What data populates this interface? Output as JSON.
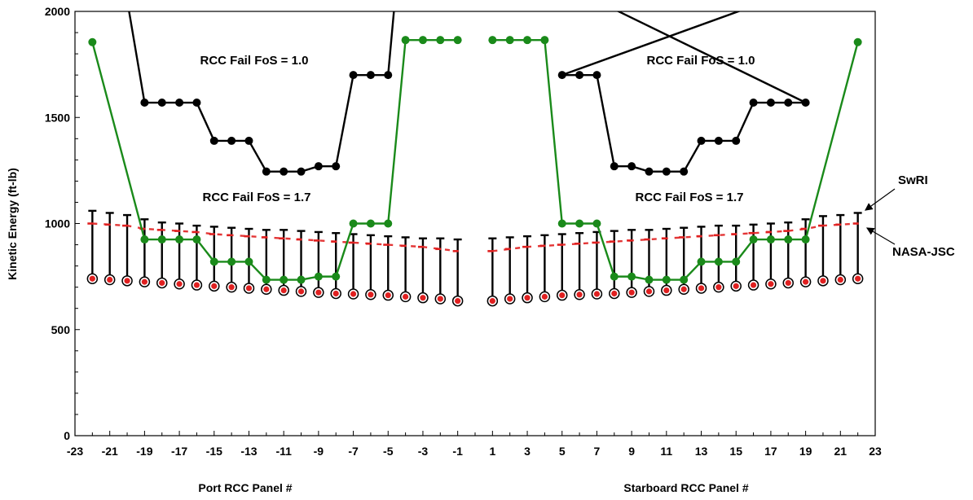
{
  "chart_data": {
    "type": "line",
    "ylabel": "Kinetic Energy (ft-lb)",
    "xlabel_port": "Port RCC Panel #",
    "xlabel_starboard": "Starboard RCC Panel #",
    "ylim": [
      0,
      2000
    ],
    "xlim": [
      -23,
      23
    ],
    "y_ticks": [
      0,
      500,
      1000,
      1500,
      2000
    ],
    "x_tick_labels": [
      "-23",
      "-21",
      "-19",
      "-17",
      "-15",
      "-13",
      "-11",
      "-9",
      "-7",
      "-5",
      "-3",
      "-1",
      "1",
      "3",
      "5",
      "7",
      "9",
      "11",
      "13",
      "15",
      "17",
      "19",
      "21",
      "23"
    ],
    "grid": false,
    "legend": "none",
    "annotations": {
      "fos10_left": "RCC Fail FoS = 1.0",
      "fos10_right": "RCC Fail FoS = 1.0",
      "fos17_left": "RCC Fail FoS = 1.7",
      "fos17_right": "RCC Fail FoS = 1.7",
      "swri": "SwRI",
      "nasa": "NASA-JSC"
    },
    "panels": {
      "port": [
        -22,
        -21,
        -20,
        -19,
        -18,
        -17,
        -16,
        -15,
        -14,
        -13,
        -12,
        -11,
        -10,
        -9,
        -8,
        -7,
        -6,
        -5,
        -4,
        -3,
        -2,
        -1
      ],
      "starboard": [
        1,
        2,
        3,
        4,
        5,
        6,
        7,
        8,
        9,
        10,
        11,
        12,
        13,
        14,
        15,
        16,
        17,
        18,
        19,
        20,
        21,
        22
      ]
    },
    "series": [
      {
        "color": "#000000",
        "port_x": [
          -19,
          -18,
          -17,
          -16,
          -15,
          -14,
          -13,
          -12,
          -11,
          -10,
          -9,
          -8,
          -7,
          -6,
          -5
        ],
        "port_y": [
          1570,
          1570,
          1570,
          1570,
          1390,
          1390,
          1390,
          1245,
          1245,
          1245,
          1270,
          1270,
          1700,
          1700,
          1700
        ],
        "starboard_x": [
          5,
          6,
          7,
          8,
          9,
          10,
          11,
          12,
          13,
          14,
          15,
          16,
          17,
          18,
          19
        ],
        "starboard_y": [
          1700,
          1700,
          1700,
          1270,
          1270,
          1245,
          1245,
          1245,
          1390,
          1390,
          1390,
          1570,
          1570,
          1570,
          1570
        ]
      },
      {
        "color": "#1a8a1a",
        "port_x": [
          -22,
          -19,
          -18,
          -17,
          -16,
          -15,
          -14,
          -13,
          -12,
          -11,
          -10,
          -9,
          -8,
          -7,
          -6,
          -5,
          -4,
          -3,
          -2,
          -1
        ],
        "port_y": [
          1855,
          925,
          925,
          925,
          925,
          820,
          820,
          820,
          735,
          735,
          735,
          750,
          750,
          1000,
          1000,
          1000,
          1865,
          1865,
          1865,
          1865
        ],
        "starboard_x": [
          1,
          2,
          3,
          4,
          5,
          6,
          7,
          8,
          9,
          10,
          11,
          12,
          13,
          14,
          15,
          16,
          17,
          18,
          19,
          22
        ],
        "starboard_y": [
          1865,
          1865,
          1865,
          1865,
          1000,
          1000,
          1000,
          750,
          750,
          735,
          735,
          735,
          820,
          820,
          820,
          925,
          925,
          925,
          925,
          1855
        ]
      },
      {
        "name": "SwRI",
        "color": "#000000",
        "port_values": [
          1060,
          1050,
          1040,
          1020,
          1005,
          1000,
          990,
          985,
          980,
          975,
          970,
          970,
          965,
          960,
          955,
          950,
          945,
          940,
          935,
          930,
          930,
          925
        ],
        "starboard_values": [
          930,
          935,
          940,
          945,
          950,
          955,
          960,
          965,
          970,
          970,
          975,
          980,
          985,
          990,
          990,
          995,
          1000,
          1005,
          1020,
          1035,
          1040,
          1050
        ]
      },
      {
        "name": "NASA-JSC",
        "color": "#e02020",
        "port_values": [
          1000,
          995,
          990,
          975,
          970,
          965,
          960,
          950,
          945,
          940,
          935,
          930,
          925,
          920,
          915,
          910,
          905,
          900,
          895,
          890,
          880,
          870
        ],
        "starboard_values": [
          870,
          880,
          890,
          895,
          900,
          905,
          910,
          915,
          920,
          925,
          930,
          935,
          940,
          945,
          950,
          955,
          960,
          965,
          975,
          990,
          995,
          1000
        ]
      },
      {
        "color": "#e02020",
        "port_values": [
          740,
          735,
          730,
          725,
          720,
          715,
          710,
          705,
          700,
          695,
          690,
          685,
          680,
          675,
          670,
          668,
          665,
          662,
          655,
          650,
          645,
          635
        ],
        "starboard_values": [
          635,
          645,
          650,
          655,
          662,
          665,
          668,
          670,
          675,
          680,
          685,
          690,
          695,
          700,
          705,
          710,
          715,
          720,
          725,
          730,
          735,
          740
        ]
      }
    ]
  }
}
